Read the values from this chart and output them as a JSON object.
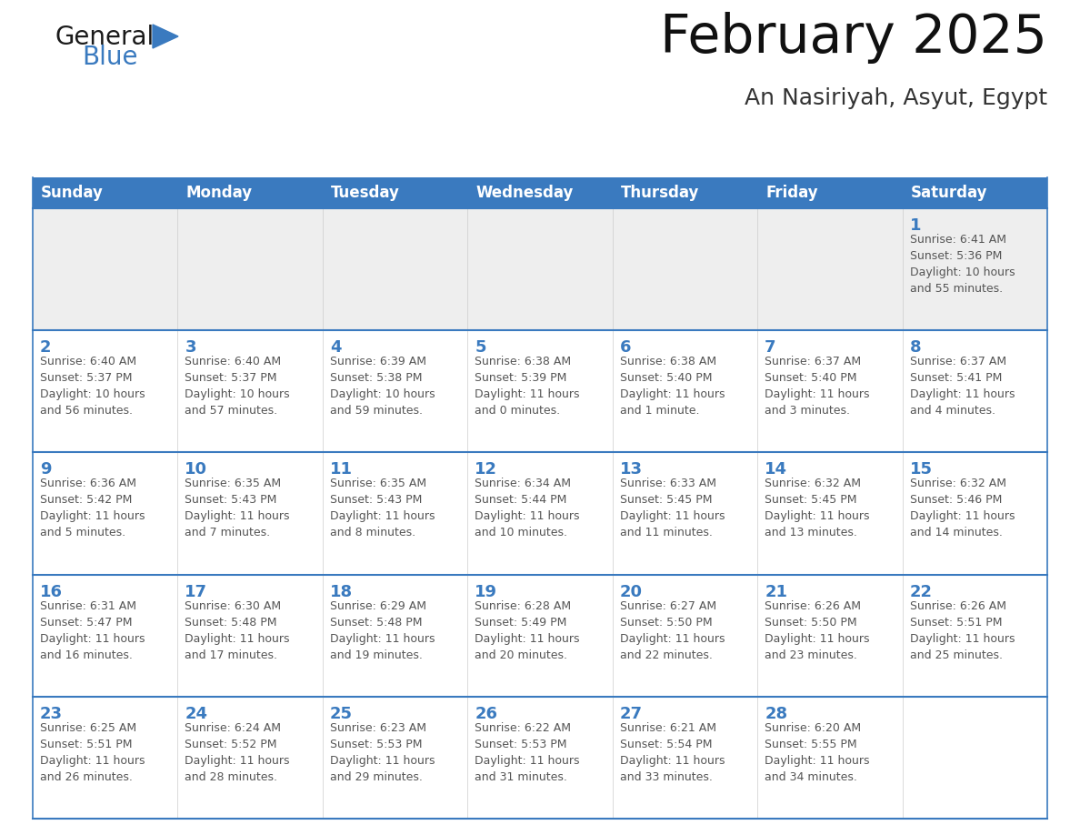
{
  "title": "February 2025",
  "subtitle": "An Nasiriyah, Asyut, Egypt",
  "header_color": "#3a7abf",
  "header_text_color": "#ffffff",
  "weekdays": [
    "Sunday",
    "Monday",
    "Tuesday",
    "Wednesday",
    "Thursday",
    "Friday",
    "Saturday"
  ],
  "bg_color": "#ffffff",
  "cell_bg": "#ffffff",
  "row1_bg": "#eeeeee",
  "border_color": "#3a7abf",
  "day_color": "#3a7abf",
  "text_color": "#555555",
  "logo_black": "#1a1a1a",
  "logo_blue": "#3a7abf",
  "weeks": [
    [
      {
        "day": "",
        "info": ""
      },
      {
        "day": "",
        "info": ""
      },
      {
        "day": "",
        "info": ""
      },
      {
        "day": "",
        "info": ""
      },
      {
        "day": "",
        "info": ""
      },
      {
        "day": "",
        "info": ""
      },
      {
        "day": "1",
        "info": "Sunrise: 6:41 AM\nSunset: 5:36 PM\nDaylight: 10 hours\nand 55 minutes."
      }
    ],
    [
      {
        "day": "2",
        "info": "Sunrise: 6:40 AM\nSunset: 5:37 PM\nDaylight: 10 hours\nand 56 minutes."
      },
      {
        "day": "3",
        "info": "Sunrise: 6:40 AM\nSunset: 5:37 PM\nDaylight: 10 hours\nand 57 minutes."
      },
      {
        "day": "4",
        "info": "Sunrise: 6:39 AM\nSunset: 5:38 PM\nDaylight: 10 hours\nand 59 minutes."
      },
      {
        "day": "5",
        "info": "Sunrise: 6:38 AM\nSunset: 5:39 PM\nDaylight: 11 hours\nand 0 minutes."
      },
      {
        "day": "6",
        "info": "Sunrise: 6:38 AM\nSunset: 5:40 PM\nDaylight: 11 hours\nand 1 minute."
      },
      {
        "day": "7",
        "info": "Sunrise: 6:37 AM\nSunset: 5:40 PM\nDaylight: 11 hours\nand 3 minutes."
      },
      {
        "day": "8",
        "info": "Sunrise: 6:37 AM\nSunset: 5:41 PM\nDaylight: 11 hours\nand 4 minutes."
      }
    ],
    [
      {
        "day": "9",
        "info": "Sunrise: 6:36 AM\nSunset: 5:42 PM\nDaylight: 11 hours\nand 5 minutes."
      },
      {
        "day": "10",
        "info": "Sunrise: 6:35 AM\nSunset: 5:43 PM\nDaylight: 11 hours\nand 7 minutes."
      },
      {
        "day": "11",
        "info": "Sunrise: 6:35 AM\nSunset: 5:43 PM\nDaylight: 11 hours\nand 8 minutes."
      },
      {
        "day": "12",
        "info": "Sunrise: 6:34 AM\nSunset: 5:44 PM\nDaylight: 11 hours\nand 10 minutes."
      },
      {
        "day": "13",
        "info": "Sunrise: 6:33 AM\nSunset: 5:45 PM\nDaylight: 11 hours\nand 11 minutes."
      },
      {
        "day": "14",
        "info": "Sunrise: 6:32 AM\nSunset: 5:45 PM\nDaylight: 11 hours\nand 13 minutes."
      },
      {
        "day": "15",
        "info": "Sunrise: 6:32 AM\nSunset: 5:46 PM\nDaylight: 11 hours\nand 14 minutes."
      }
    ],
    [
      {
        "day": "16",
        "info": "Sunrise: 6:31 AM\nSunset: 5:47 PM\nDaylight: 11 hours\nand 16 minutes."
      },
      {
        "day": "17",
        "info": "Sunrise: 6:30 AM\nSunset: 5:48 PM\nDaylight: 11 hours\nand 17 minutes."
      },
      {
        "day": "18",
        "info": "Sunrise: 6:29 AM\nSunset: 5:48 PM\nDaylight: 11 hours\nand 19 minutes."
      },
      {
        "day": "19",
        "info": "Sunrise: 6:28 AM\nSunset: 5:49 PM\nDaylight: 11 hours\nand 20 minutes."
      },
      {
        "day": "20",
        "info": "Sunrise: 6:27 AM\nSunset: 5:50 PM\nDaylight: 11 hours\nand 22 minutes."
      },
      {
        "day": "21",
        "info": "Sunrise: 6:26 AM\nSunset: 5:50 PM\nDaylight: 11 hours\nand 23 minutes."
      },
      {
        "day": "22",
        "info": "Sunrise: 6:26 AM\nSunset: 5:51 PM\nDaylight: 11 hours\nand 25 minutes."
      }
    ],
    [
      {
        "day": "23",
        "info": "Sunrise: 6:25 AM\nSunset: 5:51 PM\nDaylight: 11 hours\nand 26 minutes."
      },
      {
        "day": "24",
        "info": "Sunrise: 6:24 AM\nSunset: 5:52 PM\nDaylight: 11 hours\nand 28 minutes."
      },
      {
        "day": "25",
        "info": "Sunrise: 6:23 AM\nSunset: 5:53 PM\nDaylight: 11 hours\nand 29 minutes."
      },
      {
        "day": "26",
        "info": "Sunrise: 6:22 AM\nSunset: 5:53 PM\nDaylight: 11 hours\nand 31 minutes."
      },
      {
        "day": "27",
        "info": "Sunrise: 6:21 AM\nSunset: 5:54 PM\nDaylight: 11 hours\nand 33 minutes."
      },
      {
        "day": "28",
        "info": "Sunrise: 6:20 AM\nSunset: 5:55 PM\nDaylight: 11 hours\nand 34 minutes."
      },
      {
        "day": "",
        "info": ""
      }
    ]
  ]
}
